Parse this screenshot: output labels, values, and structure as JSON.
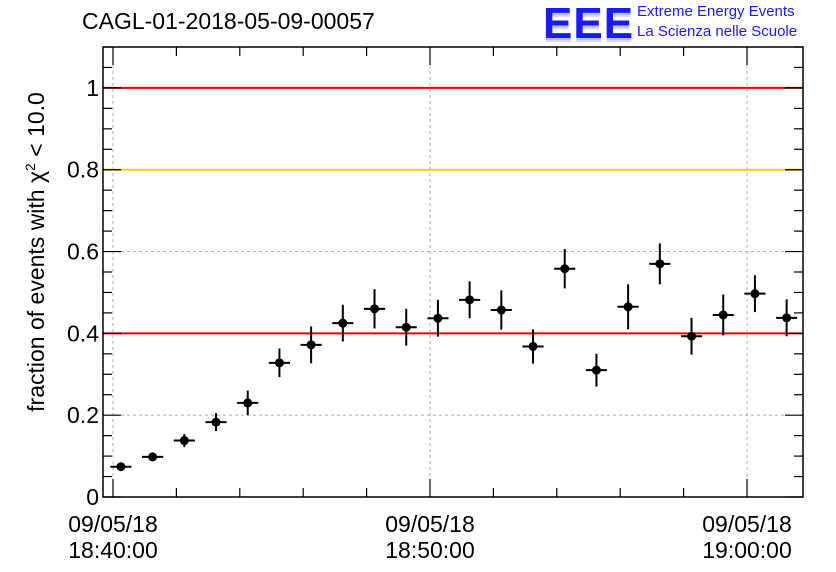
{
  "title": "CAGL-01-2018-05-09-00057",
  "logo": {
    "mark": "EEE",
    "line1": "Extreme Energy Events",
    "line2": "La Scienza nelle Scuole"
  },
  "chart_data": {
    "type": "scatter",
    "title": "CAGL-01-2018-05-09-00057",
    "ylabel": "fraction of events with χ² < 10.0",
    "ylabel_parts": {
      "pre": "fraction of events with χ",
      "sup": "2",
      "post": " < 10.0"
    },
    "xlabel": "",
    "x_unit": "seconds after 09/05/18 18:40:00",
    "xlim": [
      -20,
      1110
    ],
    "ylim": [
      0,
      1.1
    ],
    "yticks": [
      0,
      0.2,
      0.4,
      0.6,
      0.8,
      1
    ],
    "ytick_labels": [
      "0",
      "0.2",
      "0.4",
      "0.6",
      "0.8",
      "1"
    ],
    "xticks": [
      0,
      600,
      1200
    ],
    "xtick_labels": [
      [
        "09/05/18",
        "18:40:00"
      ],
      [
        "09/05/18",
        "18:50:00"
      ],
      [
        "09/05/18",
        "19:00:00"
      ]
    ],
    "grid": true,
    "reference_lines": [
      {
        "y": 1.0,
        "color": "#ee0000"
      },
      {
        "y": 0.8,
        "color": "#ffcc00"
      },
      {
        "y": 0.4,
        "color": "#ee0000"
      }
    ],
    "series": [
      {
        "color": "#000000",
        "x_halfwidth": 20,
        "points": [
          {
            "x": 15,
            "y": 0.074,
            "err": 0.008
          },
          {
            "x": 75,
            "y": 0.098,
            "err": 0.01
          },
          {
            "x": 135,
            "y": 0.138,
            "err": 0.016
          },
          {
            "x": 195,
            "y": 0.183,
            "err": 0.022
          },
          {
            "x": 255,
            "y": 0.23,
            "err": 0.03
          },
          {
            "x": 315,
            "y": 0.328,
            "err": 0.035
          },
          {
            "x": 375,
            "y": 0.372,
            "err": 0.045
          },
          {
            "x": 435,
            "y": 0.425,
            "err": 0.045
          },
          {
            "x": 495,
            "y": 0.46,
            "err": 0.048
          },
          {
            "x": 555,
            "y": 0.415,
            "err": 0.045
          },
          {
            "x": 615,
            "y": 0.437,
            "err": 0.045
          },
          {
            "x": 675,
            "y": 0.482,
            "err": 0.045
          },
          {
            "x": 735,
            "y": 0.457,
            "err": 0.048
          },
          {
            "x": 795,
            "y": 0.368,
            "err": 0.042
          },
          {
            "x": 855,
            "y": 0.558,
            "err": 0.048
          },
          {
            "x": 915,
            "y": 0.31,
            "err": 0.04
          },
          {
            "x": 975,
            "y": 0.465,
            "err": 0.055
          },
          {
            "x": 1035,
            "y": 0.57,
            "err": 0.05
          },
          {
            "x": 1095,
            "y": 0.393,
            "err": 0.045
          },
          {
            "x": 1155,
            "y": 0.445,
            "err": 0.05
          },
          {
            "x": 1215,
            "y": 0.497,
            "err": 0.045
          },
          {
            "x": 1275,
            "y": 0.438,
            "err": 0.045
          }
        ]
      }
    ]
  }
}
